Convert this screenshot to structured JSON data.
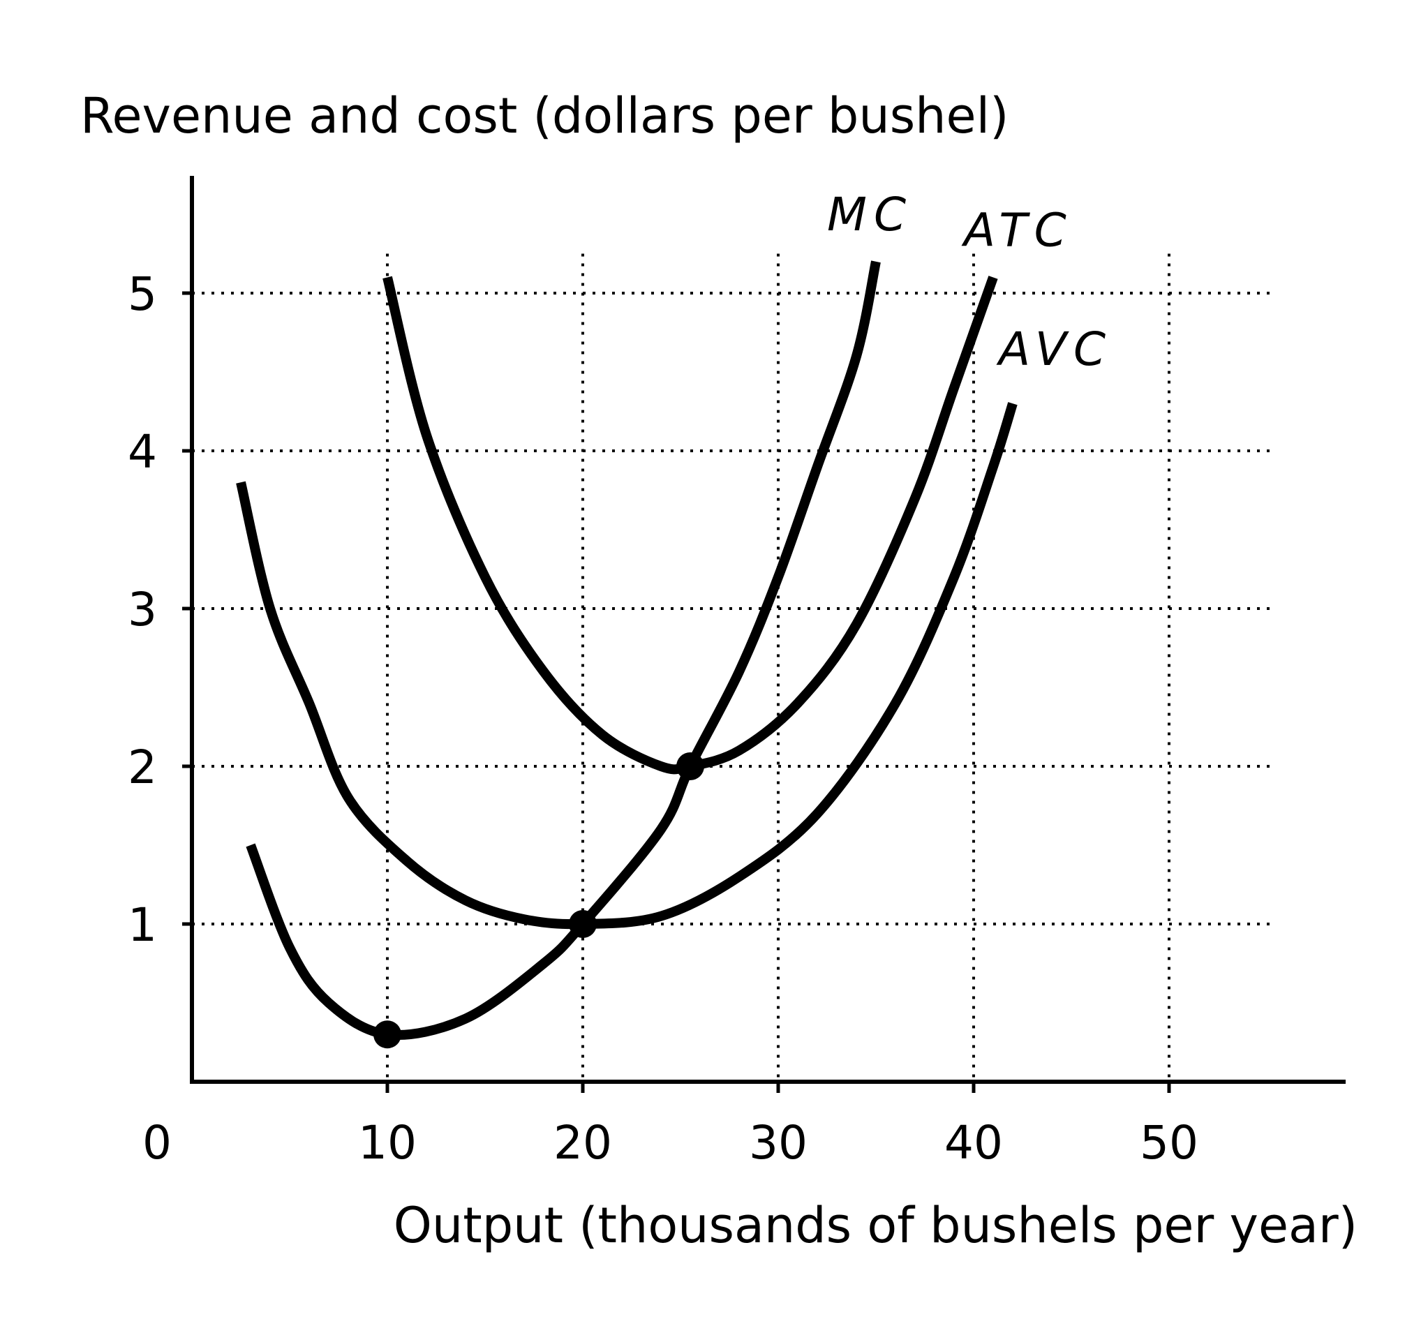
{
  "chart_data": {
    "type": "line",
    "title": "",
    "ylabel": "Revenue and cost (dollars per bushel)",
    "xlabel": "Output (thousands of bushels per year)",
    "origin_label": "0",
    "x_ticks": [
      "10",
      "20",
      "30",
      "40",
      "50"
    ],
    "y_ticks": [
      "1",
      "2",
      "3",
      "4",
      "5"
    ],
    "xlim": [
      0,
      58
    ],
    "ylim": [
      0,
      5.4
    ],
    "grid": true,
    "series": [
      {
        "name": "MC",
        "points": [
          [
            3,
            1.5
          ],
          [
            5,
            0.85
          ],
          [
            7,
            0.5
          ],
          [
            10,
            0.3
          ],
          [
            14,
            0.4
          ],
          [
            18,
            0.75
          ],
          [
            20,
            1.0
          ],
          [
            24,
            1.6
          ],
          [
            25.5,
            2.0
          ],
          [
            28,
            2.6
          ],
          [
            30,
            3.2
          ],
          [
            32,
            3.9
          ],
          [
            34,
            4.6
          ],
          [
            35,
            5.2
          ]
        ]
      },
      {
        "name": "ATC",
        "points": [
          [
            10,
            5.1
          ],
          [
            12,
            4.1
          ],
          [
            15,
            3.2
          ],
          [
            18,
            2.6
          ],
          [
            21,
            2.2
          ],
          [
            24,
            2.0
          ],
          [
            25.5,
            2.0
          ],
          [
            28,
            2.1
          ],
          [
            31,
            2.4
          ],
          [
            34,
            2.9
          ],
          [
            37,
            3.7
          ],
          [
            39,
            4.4
          ],
          [
            41,
            5.1
          ]
        ]
      },
      {
        "name": "AVC",
        "points": [
          [
            2.5,
            3.8
          ],
          [
            4,
            3.0
          ],
          [
            6,
            2.4
          ],
          [
            8,
            1.8
          ],
          [
            11,
            1.4
          ],
          [
            14,
            1.15
          ],
          [
            17,
            1.03
          ],
          [
            20,
            1.0
          ],
          [
            24,
            1.05
          ],
          [
            28,
            1.3
          ],
          [
            32,
            1.7
          ],
          [
            36,
            2.4
          ],
          [
            39,
            3.2
          ],
          [
            41,
            3.9
          ],
          [
            42,
            4.3
          ]
        ]
      }
    ],
    "markers": [
      [
        10,
        0.3
      ],
      [
        20,
        1.0
      ],
      [
        25.5,
        2.0
      ]
    ]
  }
}
